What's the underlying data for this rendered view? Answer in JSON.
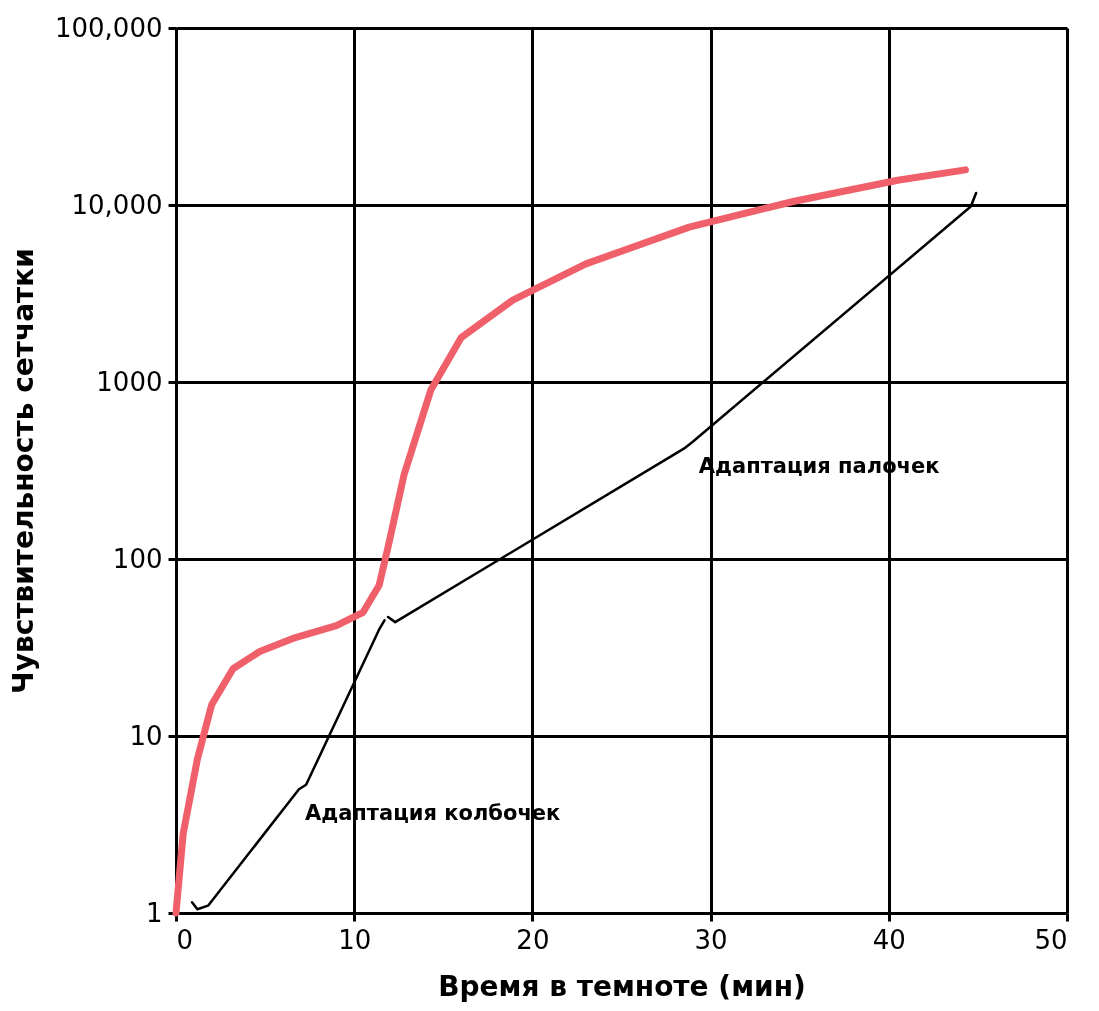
{
  "chart_data": {
    "type": "line",
    "xlabel": "Время в темноте (мин)",
    "ylabel": "Чувствительность сетчатки",
    "log": "y",
    "grid": true,
    "legend": false,
    "marker": "none",
    "line_style": "solid",
    "xlim": [
      0,
      50
    ],
    "xticks": [
      0,
      10,
      20,
      30,
      40,
      50
    ],
    "ylim": [
      1,
      100000
    ],
    "yticks": [
      1,
      10,
      100,
      1000,
      {
        "value": 10000,
        "label": "10,000"
      },
      {
        "value": 100000,
        "label": "100,000"
      }
    ],
    "series": [
      {
        "color": "#f0606a",
        "x": [
          0,
          0.4,
          1.2,
          2,
          3.2,
          4.7,
          6.7,
          9,
          10.5,
          11.4,
          11.9,
          12.8,
          14.3,
          16,
          18.9,
          23,
          28.8,
          34.7,
          40.5,
          44.3
        ],
        "values": [
          1,
          2.8,
          7.4,
          15,
          24,
          30,
          36,
          42,
          50,
          71,
          117,
          300,
          900,
          1780,
          2900,
          4650,
          7500,
          10500,
          13800,
          15800
        ]
      },
      {
        "color": "#000000",
        "x": [
          0.9,
          1.2,
          1.8,
          6.9,
          7.3,
          11.4,
          11.7
        ],
        "values": [
          1.15,
          1.05,
          1.1,
          5,
          5.3,
          40,
          45
        ]
      },
      {
        "color": "#000000",
        "x": [
          11.9,
          12.3,
          28.5,
          29,
          44.6,
          44.9
        ],
        "values": [
          47,
          44,
          420,
          460,
          9800,
          11700
        ]
      }
    ],
    "annotations": [
      "Адаптация колбочек",
      "Адаптация палочек"
    ]
  }
}
